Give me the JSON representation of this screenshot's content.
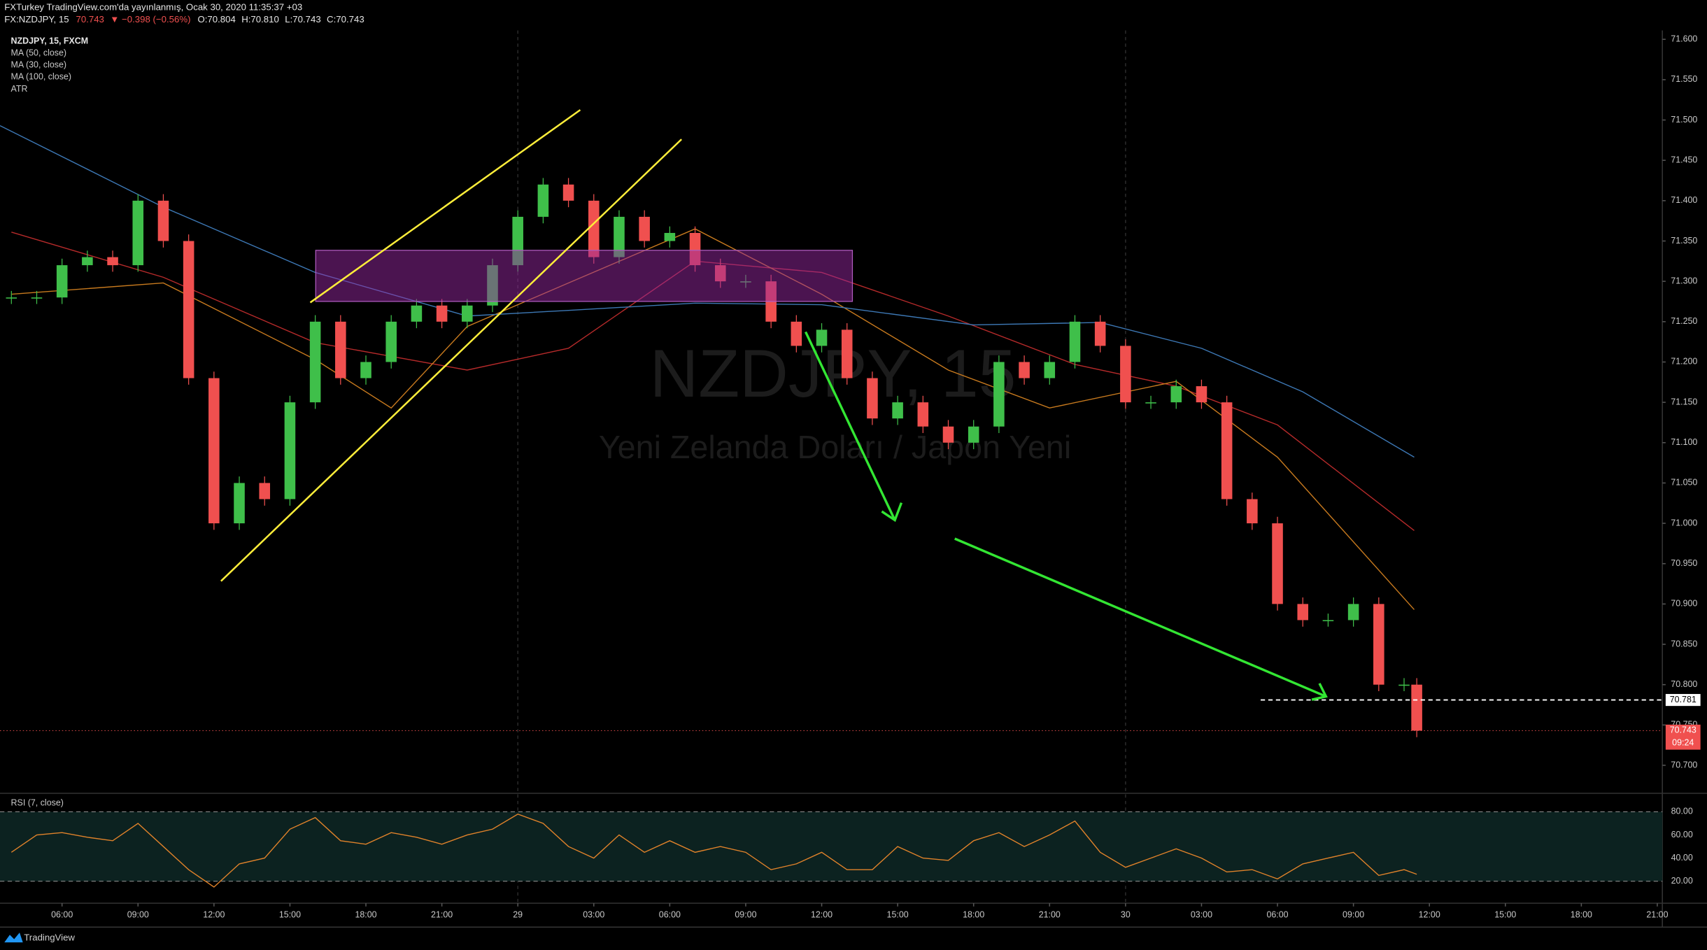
{
  "header": {
    "line1": "FXTurkey TradingView.com'da yayınlanmış, Ocak 30, 2020 11:35:37 +03",
    "symbol": "FX:NZDJPY, 15",
    "last": "70.743",
    "change": "▼ −0.398 (−0.56%)",
    "open": "O:70.804",
    "high": "H:70.810",
    "low": "L:70.743",
    "close": "C:70.743"
  },
  "watermark": {
    "symbol": "NZDJPY, 15",
    "description": "Yeni Zelanda Doları / Japon Yeni"
  },
  "brand": "TradingView",
  "chart_data": {
    "type": "candlestick",
    "title": "NZDJPY, 15, FXCM",
    "x": [
      4,
      5,
      6,
      7,
      8,
      9,
      10,
      11,
      12,
      13,
      14,
      15,
      16,
      17,
      18,
      19,
      20,
      21,
      22,
      23,
      24,
      25,
      26,
      27,
      28,
      29,
      30,
      31,
      32,
      33,
      34,
      35,
      36,
      37,
      38,
      39,
      40,
      41,
      42,
      43,
      44,
      45,
      46,
      47,
      48,
      49,
      50,
      51,
      52,
      53,
      54,
      55,
      56,
      57,
      58,
      59,
      59.5
    ],
    "series": [
      {
        "name": "NZDJPY, 15, FXCM",
        "color_up": "#3fbf4a",
        "color_down": "#f0504f",
        "values": [
          71.28,
          71.28,
          71.32,
          71.33,
          71.32,
          71.4,
          71.35,
          71.18,
          71.0,
          71.05,
          71.03,
          71.15,
          71.25,
          71.18,
          71.2,
          71.25,
          71.27,
          71.25,
          71.27,
          71.32,
          71.38,
          71.42,
          71.4,
          71.33,
          71.38,
          71.35,
          71.36,
          71.32,
          71.3,
          71.3,
          71.25,
          71.22,
          71.24,
          71.18,
          71.13,
          71.15,
          71.12,
          71.1,
          71.12,
          71.2,
          71.18,
          71.2,
          71.25,
          71.22,
          71.15,
          71.15,
          71.17,
          71.15,
          71.03,
          71.0,
          70.9,
          70.88,
          70.88,
          70.9,
          70.8,
          70.8,
          70.743
        ]
      }
    ],
    "overlays": [
      {
        "name": "MA (50, close)",
        "color": "#b52a2a",
        "x": [
          4,
          10,
          16,
          22,
          26,
          31,
          36,
          41,
          46,
          50,
          54,
          59.4
        ],
        "values": [
          71.361,
          71.305,
          71.224,
          71.19,
          71.217,
          71.325,
          71.311,
          71.257,
          71.197,
          71.17,
          71.122,
          70.991
        ]
      },
      {
        "name": "MA (30, close)",
        "color": "#c87a1e",
        "x": [
          4,
          10,
          16,
          19,
          22,
          26,
          31,
          36,
          41,
          45,
          50,
          54,
          59.4
        ],
        "values": [
          71.284,
          71.298,
          71.203,
          71.143,
          71.244,
          71.298,
          71.365,
          71.284,
          71.19,
          71.143,
          71.176,
          71.082,
          70.893
        ]
      },
      {
        "name": "MA (100, close)",
        "color": "#3d78b5",
        "x": [
          3.55,
          10,
          16,
          22,
          26,
          31,
          36,
          42,
          47,
          51,
          55,
          59.4
        ],
        "values": [
          71.493,
          71.392,
          71.311,
          71.257,
          71.264,
          71.273,
          71.271,
          71.246,
          71.249,
          71.217,
          71.163,
          71.082
        ]
      }
    ],
    "legend_extra": [
      "ATR"
    ],
    "xlim": [
      3.55,
      69.2
    ],
    "xticks": [
      {
        "value": 6,
        "label": "06:00"
      },
      {
        "value": 9,
        "label": "09:00"
      },
      {
        "value": 12,
        "label": "12:00"
      },
      {
        "value": 15,
        "label": "15:00"
      },
      {
        "value": 18,
        "label": "18:00"
      },
      {
        "value": 21,
        "label": "21:00"
      },
      {
        "value": 24,
        "label": "29"
      },
      {
        "value": 27,
        "label": "03:00"
      },
      {
        "value": 30,
        "label": "06:00"
      },
      {
        "value": 33,
        "label": "09:00"
      },
      {
        "value": 36,
        "label": "12:00"
      },
      {
        "value": 39,
        "label": "15:00"
      },
      {
        "value": 42,
        "label": "18:00"
      },
      {
        "value": 45,
        "label": "21:00"
      },
      {
        "value": 48,
        "label": "30"
      },
      {
        "value": 51,
        "label": "03:00"
      },
      {
        "value": 54,
        "label": "06:00"
      },
      {
        "value": 57,
        "label": "09:00"
      },
      {
        "value": 60,
        "label": "12:00"
      },
      {
        "value": 63,
        "label": "15:00"
      },
      {
        "value": 66,
        "label": "18:00"
      },
      {
        "value": 69,
        "label": "21:00"
      }
    ],
    "day_separators": [
      24,
      48
    ],
    "ylim": [
      70.668,
      71.611
    ],
    "yticks": [
      {
        "value": 71.6,
        "label": "71.600"
      },
      {
        "value": 71.55,
        "label": "71.550"
      },
      {
        "value": 71.5,
        "label": "71.500"
      },
      {
        "value": 71.45,
        "label": "71.450"
      },
      {
        "value": 71.4,
        "label": "71.400"
      },
      {
        "value": 71.35,
        "label": "71.350"
      },
      {
        "value": 71.3,
        "label": "71.300"
      },
      {
        "value": 71.25,
        "label": "71.250"
      },
      {
        "value": 71.2,
        "label": "71.200"
      },
      {
        "value": 71.15,
        "label": "71.150"
      },
      {
        "value": 71.1,
        "label": "71.100"
      },
      {
        "value": 71.05,
        "label": "71.050"
      },
      {
        "value": 71.0,
        "label": "71.000"
      },
      {
        "value": 70.95,
        "label": "70.950"
      },
      {
        "value": 70.9,
        "label": "70.900"
      },
      {
        "value": 70.85,
        "label": "70.850"
      },
      {
        "value": 70.8,
        "label": "70.800"
      },
      {
        "value": 70.75,
        "label": "70.750"
      },
      {
        "value": 70.7,
        "label": "70.700"
      }
    ],
    "marker": {
      "value": 70.781,
      "label": "70.781"
    },
    "last_price": {
      "value": 70.743,
      "label": "70.743",
      "countdown": "09:24"
    },
    "rsi": {
      "name": "RSI (7, close)",
      "color": "#e0822a",
      "ylim": [
        1,
        96
      ],
      "yticks": [
        {
          "value": 80,
          "label": "80.00"
        },
        {
          "value": 60,
          "label": "60.00"
        },
        {
          "value": 40,
          "label": "40.00"
        },
        {
          "value": 20,
          "label": "20.00"
        }
      ],
      "values": [
        45,
        60,
        62,
        58,
        55,
        70,
        50,
        30,
        15,
        35,
        40,
        65,
        75,
        55,
        52,
        62,
        58,
        52,
        60,
        65,
        78,
        70,
        50,
        40,
        60,
        45,
        55,
        45,
        50,
        45,
        30,
        35,
        45,
        30,
        30,
        50,
        40,
        38,
        55,
        62,
        50,
        60,
        72,
        45,
        32,
        40,
        48,
        40,
        28,
        30,
        22,
        35,
        40,
        45,
        25,
        30,
        26
      ]
    }
  }
}
